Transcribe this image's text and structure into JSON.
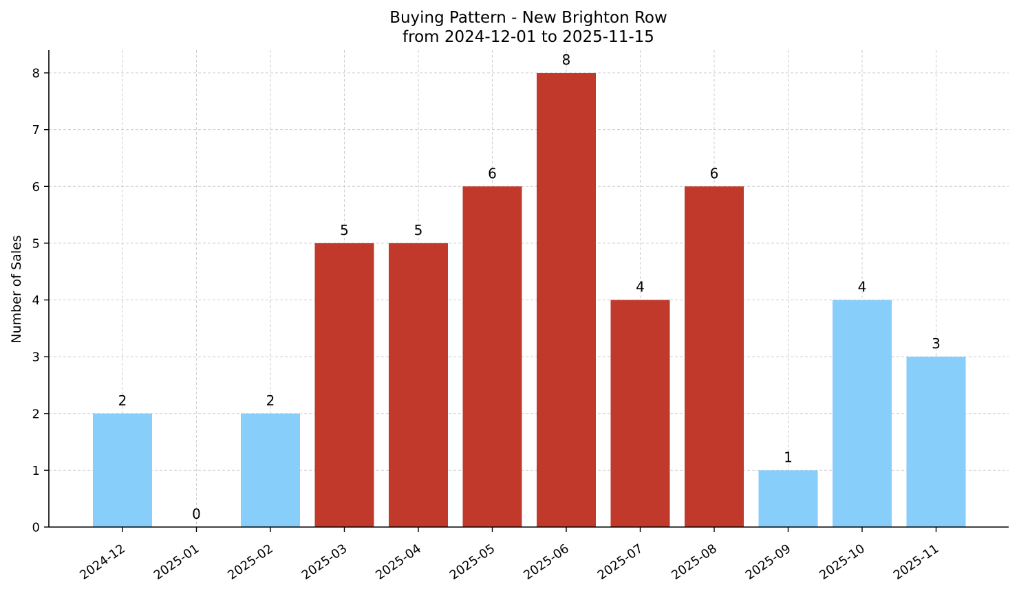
{
  "chart_data": {
    "type": "bar",
    "title_line1": "Buying Pattern - New Brighton Row",
    "title_line2": "from 2024-12-01 to 2025-11-15",
    "xlabel": "",
    "ylabel": "Number of Sales",
    "categories": [
      "2024-12",
      "2025-01",
      "2025-02",
      "2025-03",
      "2025-04",
      "2025-05",
      "2025-06",
      "2025-07",
      "2025-08",
      "2025-09",
      "2025-10",
      "2025-11"
    ],
    "values": [
      2,
      0,
      2,
      5,
      5,
      6,
      8,
      4,
      6,
      1,
      4,
      3
    ],
    "highlighted": [
      false,
      false,
      false,
      true,
      true,
      true,
      true,
      true,
      true,
      false,
      false,
      false
    ],
    "ylim": [
      0,
      8.4
    ],
    "yticks": [
      0,
      1,
      2,
      3,
      4,
      5,
      6,
      7,
      8
    ],
    "grid": true,
    "legend": "none",
    "colors": {
      "normal": "#87cefa",
      "highlight": "#c0392b"
    }
  }
}
